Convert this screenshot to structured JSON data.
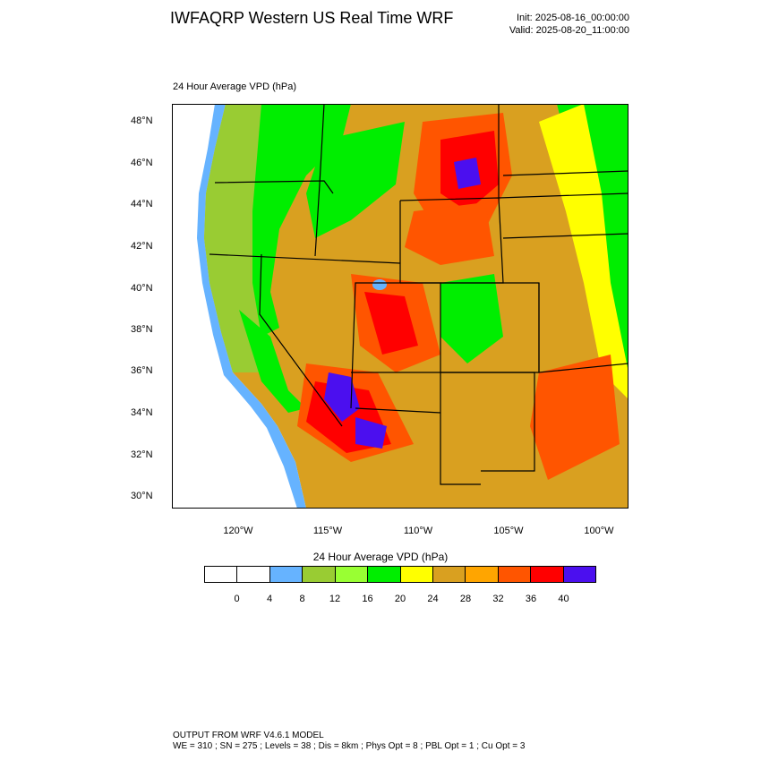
{
  "header": {
    "title": "IWFAQRP Western US Real Time WRF",
    "init": "Init: 2025-08-16_00:00:00",
    "valid": "Valid: 2025-08-20_11:00:00"
  },
  "map": {
    "subtitle": "24 Hour Average VPD   (hPa)",
    "lat_labels": [
      "48°N",
      "46°N",
      "44°N",
      "42°N",
      "40°N",
      "38°N",
      "36°N",
      "34°N",
      "32°N",
      "30°N"
    ],
    "lon_labels": [
      "120°W",
      "115°W",
      "110°W",
      "105°W",
      "100°W"
    ],
    "colors": {
      "ocean": "#66b3ff",
      "lake": "#66b3ff",
      "outside": "#ffffff"
    }
  },
  "colorbar": {
    "title": "24 Hour Average VPD  (hPa)",
    "colors": [
      "#ffffff",
      "#ffffff",
      "#66b3ff",
      "#99cc33",
      "#99ff33",
      "#00ee00",
      "#ffff00",
      "#d9a020",
      "#ffa500",
      "#ff5500",
      "#ff0000",
      "#4b0fef"
    ],
    "labels": [
      "0",
      "4",
      "8",
      "12",
      "16",
      "20",
      "24",
      "28",
      "32",
      "36",
      "40"
    ]
  },
  "footer": {
    "line1": "OUTPUT FROM WRF V4.6.1 MODEL",
    "line2": "WE = 310 ; SN = 275 ; Levels = 38 ; Dis = 8km ; Phys Opt = 8 ; PBL Opt = 1 ; Cu Opt = 3"
  }
}
